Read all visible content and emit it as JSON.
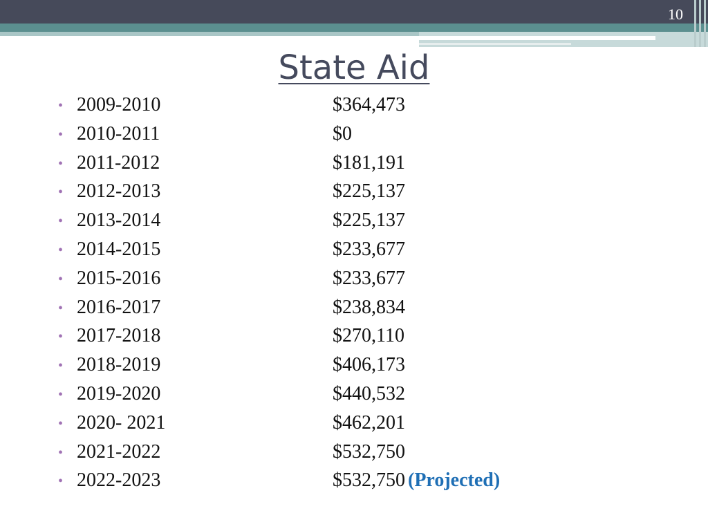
{
  "slide": {
    "number": "10",
    "title": "State Aid"
  },
  "rows": [
    {
      "year": "2009-2010",
      "amount": "$364,473",
      "note": ""
    },
    {
      "year": "2010-2011",
      "amount": "$0",
      "note": ""
    },
    {
      "year": "2011-2012",
      "amount": "$181,191",
      "note": ""
    },
    {
      "year": "2012-2013",
      "amount": "$225,137",
      "note": ""
    },
    {
      "year": "2013-2014",
      "amount": "$225,137",
      "note": ""
    },
    {
      "year": "2014-2015",
      "amount": "$233,677",
      "note": ""
    },
    {
      "year": "2015-2016",
      "amount": "$233,677",
      "note": ""
    },
    {
      "year": "2016-2017",
      "amount": "$238,834",
      "note": ""
    },
    {
      "year": "2017-2018",
      "amount": "$270,110",
      "note": ""
    },
    {
      "year": "2018-2019",
      "amount": "$406,173",
      "note": ""
    },
    {
      "year": "2019-2020",
      "amount": "$440,532",
      "note": ""
    },
    {
      "year": "2020- 2021",
      "amount": "$462,201",
      "note": ""
    },
    {
      "year": "2021-2022",
      "amount": "$532,750",
      "note": ""
    },
    {
      "year": "2022-2023",
      "amount": "$532,750",
      "note": "(Projected)"
    }
  ],
  "bullet": "•",
  "colors": {
    "header": "#464a5a",
    "teal": "#5b8f8f",
    "bullet": "#a072b4",
    "note": "#1f6fb5",
    "title": "#454a5d"
  }
}
